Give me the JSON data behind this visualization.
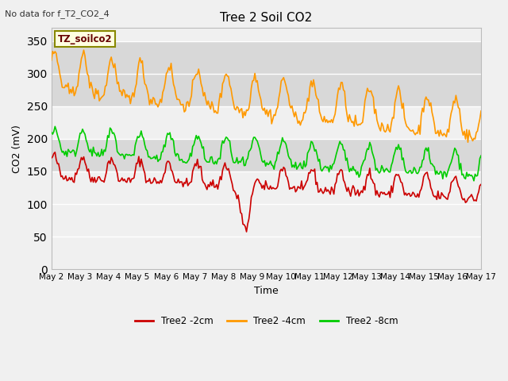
{
  "title": "Tree 2 Soil CO2",
  "subtitle": "No data for f_T2_CO2_4",
  "xlabel": "Time",
  "ylabel": "CO2 (mV)",
  "ylim": [
    0,
    370
  ],
  "yticks": [
    0,
    50,
    100,
    150,
    200,
    250,
    300,
    350
  ],
  "fig_bg_color": "#f0f0f0",
  "plot_bg_color": "#f0f0f0",
  "band_color": "#d8d8d8",
  "grid_color": "#ffffff",
  "line_colors": {
    "red": "#cc0000",
    "orange": "#ff9900",
    "green": "#00cc00"
  },
  "legend_label": "TZ_soilco2",
  "series_labels": [
    "Tree2 -2cm",
    "Tree2 -4cm",
    "Tree2 -8cm"
  ],
  "x_labels": [
    "May 2",
    "May 3",
    "May 4",
    "May 5",
    "May 6",
    "May 7",
    "May 8",
    "May 9",
    "May 10",
    "May 11",
    "May 12",
    "May 13",
    "May 14",
    "May 15",
    "May 16",
    "May 17"
  ],
  "seed": 42
}
